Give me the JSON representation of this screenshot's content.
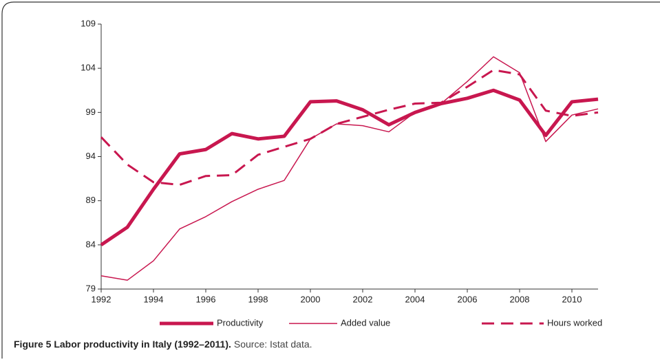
{
  "chart_data": {
    "type": "line",
    "caption_bold": "Figure 5 Labor productivity in Italy (1992–2011).",
    "caption_text": "Source: Istat data.",
    "x": [
      1992,
      1993,
      1994,
      1995,
      1996,
      1997,
      1998,
      1999,
      2000,
      2001,
      2002,
      2003,
      2004,
      2005,
      2006,
      2007,
      2008,
      2009,
      2010,
      2011
    ],
    "xlim": [
      1992,
      2011
    ],
    "xticks": [
      1992,
      1994,
      1996,
      1998,
      2000,
      2002,
      2004,
      2006,
      2008,
      2010
    ],
    "ylim": [
      79,
      109
    ],
    "yticks": [
      79,
      84,
      89,
      94,
      99,
      104,
      109
    ],
    "grid": false,
    "legend": "bottom",
    "series": [
      {
        "name": "Productivity",
        "color": "#c8174f",
        "line_width": 5,
        "dash": "solid",
        "values": [
          84.0,
          86.0,
          90.3,
          94.3,
          94.8,
          96.6,
          96.0,
          96.3,
          100.2,
          100.3,
          99.3,
          97.6,
          99.0,
          100.0,
          100.6,
          101.5,
          100.4,
          96.4,
          100.2,
          100.5
        ]
      },
      {
        "name": "Added value",
        "color": "#c8174f",
        "line_width": 1.5,
        "dash": "solid",
        "values": [
          80.5,
          80.0,
          82.2,
          85.8,
          87.2,
          88.9,
          90.3,
          91.3,
          96.0,
          97.7,
          97.5,
          96.8,
          99.0,
          100.0,
          102.5,
          105.3,
          103.5,
          95.7,
          98.7,
          99.4
        ]
      },
      {
        "name": "Hours worked",
        "color": "#c8174f",
        "line_width": 3,
        "dash": "dashed",
        "values": [
          96.2,
          93.1,
          91.1,
          90.8,
          91.8,
          91.9,
          94.2,
          95.1,
          96.0,
          97.7,
          98.5,
          99.3,
          100.0,
          100.1,
          101.9,
          103.8,
          103.3,
          99.2,
          98.6,
          99.0
        ]
      }
    ]
  }
}
